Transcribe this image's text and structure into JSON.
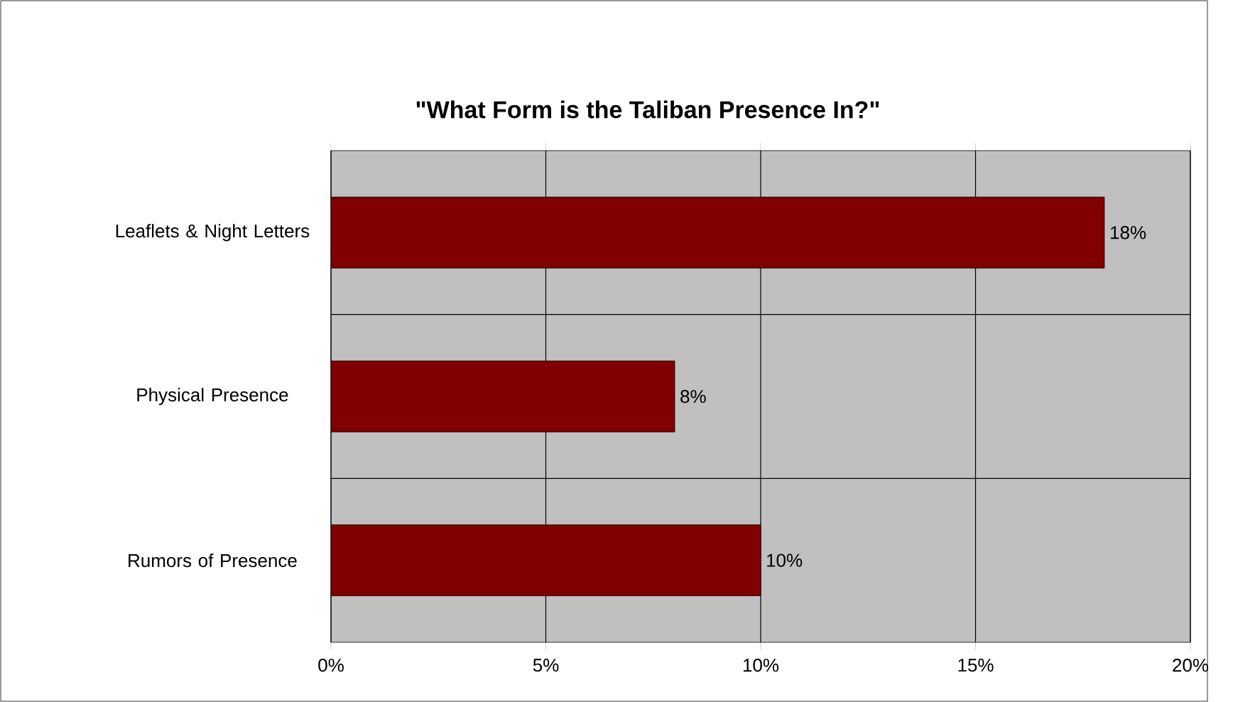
{
  "chart_data": {
    "type": "bar",
    "orientation": "horizontal",
    "title": "\"What Form is the Taliban Presence In?\"",
    "categories": [
      "Leaflets & Night Letters",
      "Physical Presence",
      "Rumors of Presence"
    ],
    "values": [
      18,
      8,
      10
    ],
    "value_labels": [
      "18%",
      "8%",
      "10%"
    ],
    "color": "#800000",
    "xlim": [
      0,
      20
    ],
    "xticks": [
      {
        "value": 0,
        "label": "0%"
      },
      {
        "value": 5,
        "label": "5%"
      },
      {
        "value": 10,
        "label": "10%"
      },
      {
        "value": 15,
        "label": "15%"
      },
      {
        "value": 20,
        "label": "20%"
      }
    ],
    "grid": true
  }
}
